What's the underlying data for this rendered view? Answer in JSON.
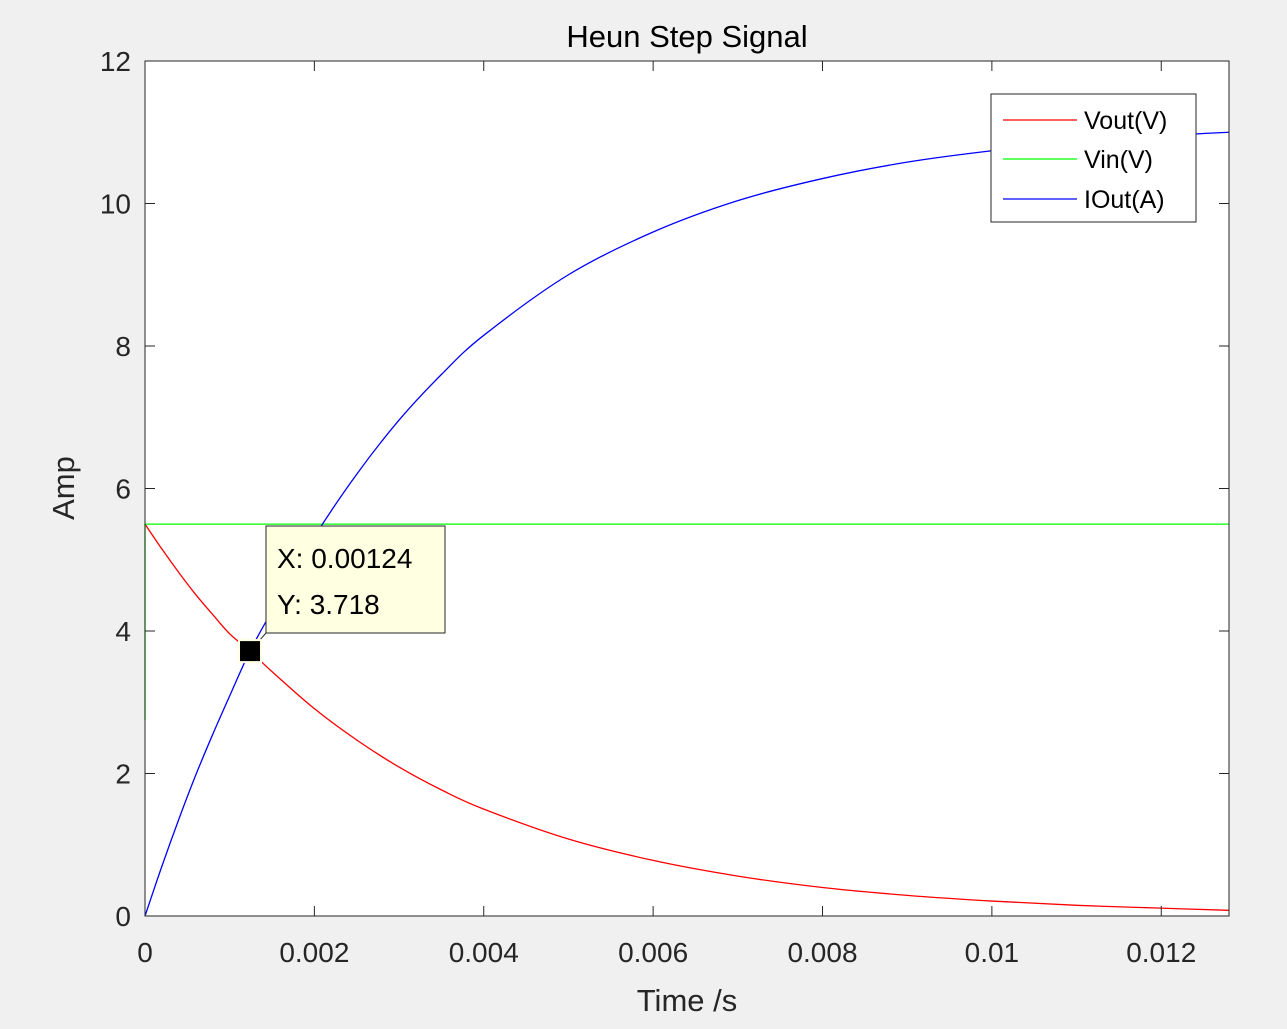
{
  "chart_data": {
    "type": "line",
    "title": "Heun Step Signal",
    "xlabel": "Time /s",
    "ylabel": "Amp",
    "xlim": [
      0,
      0.0128
    ],
    "ylim": [
      0,
      12
    ],
    "xticks": [
      0,
      0.002,
      0.004,
      0.006,
      0.008,
      0.01,
      0.012
    ],
    "xtick_labels": [
      "0",
      "0.002",
      "0.004",
      "0.006",
      "0.008",
      "0.01",
      "0.012"
    ],
    "yticks": [
      0,
      2,
      4,
      6,
      8,
      10,
      12
    ],
    "ytick_labels": [
      "0",
      "2",
      "4",
      "6",
      "8",
      "10",
      "12"
    ],
    "grid": false,
    "legend_position": "top-right",
    "series": [
      {
        "name": "Vout(V)",
        "color": "#ff0000",
        "x": [
          0,
          0.0002,
          0.0004,
          0.0006,
          0.0008,
          0.001,
          0.00124,
          0.0015,
          0.002,
          0.0025,
          0.003,
          0.0035,
          0.004,
          0.005,
          0.006,
          0.007,
          0.008,
          0.009,
          0.01,
          0.011,
          0.012,
          0.0128
        ],
        "y": [
          5.5,
          5.15,
          4.82,
          4.51,
          4.23,
          3.96,
          3.718,
          3.43,
          2.91,
          2.47,
          2.09,
          1.77,
          1.5,
          1.08,
          0.78,
          0.56,
          0.4,
          0.29,
          0.21,
          0.15,
          0.11,
          0.08
        ]
      },
      {
        "name": "Vin(V)",
        "color": "#00ff00",
        "x": [
          0,
          0,
          0.0128
        ],
        "y": [
          2.75,
          5.5,
          5.5
        ]
      },
      {
        "name": "IOut(A)",
        "color": "#0000ff",
        "x": [
          0,
          0.0002,
          0.0004,
          0.0006,
          0.0008,
          0.001,
          0.00124,
          0.0015,
          0.002,
          0.0025,
          0.003,
          0.0035,
          0.004,
          0.005,
          0.006,
          0.007,
          0.008,
          0.009,
          0.01,
          0.011,
          0.012,
          0.0128
        ],
        "y": [
          0,
          0.7,
          1.36,
          1.98,
          2.55,
          3.09,
          3.718,
          4.28,
          5.32,
          6.2,
          6.96,
          7.6,
          8.15,
          9.0,
          9.6,
          10.04,
          10.35,
          10.58,
          10.74,
          10.86,
          10.95,
          11.0
        ]
      }
    ],
    "datatip": {
      "x": 0.00124,
      "y": 3.718,
      "x_label": "X: 0.00124",
      "y_label": "Y: 3.718"
    }
  },
  "colors": {
    "figure_background": "#f0f0f0",
    "axes_background": "#ffffff",
    "axis_color": "#262626",
    "datatip_background": "#ffffe1"
  }
}
